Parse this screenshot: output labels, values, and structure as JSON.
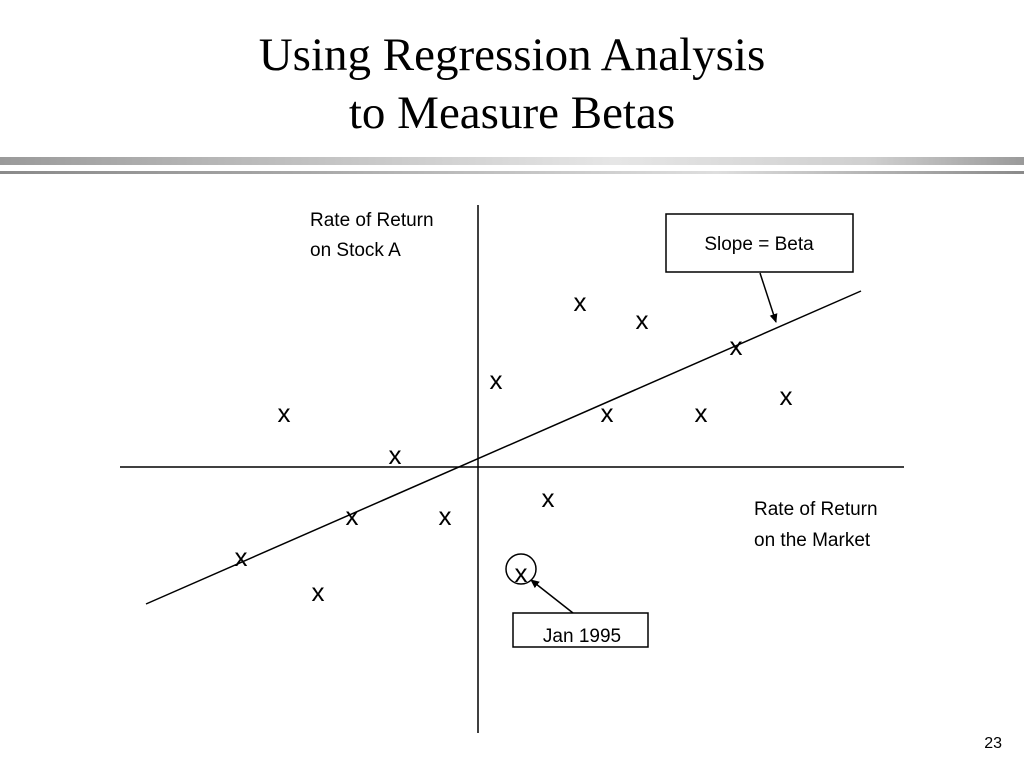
{
  "slide": {
    "title_line1": "Using Regression Analysis",
    "title_line2": "to Measure Betas",
    "page_number": "23"
  },
  "diagram": {
    "y_axis_label_line1": "Rate of Return",
    "y_axis_label_line2": "on Stock A",
    "x_axis_label_line1": "Rate of Return",
    "x_axis_label_line2": "on the Market",
    "slope_callout": "Slope = Beta",
    "highlight_callout": "Jan 1995",
    "point_marker": "x",
    "line_color": "#000000"
  }
}
